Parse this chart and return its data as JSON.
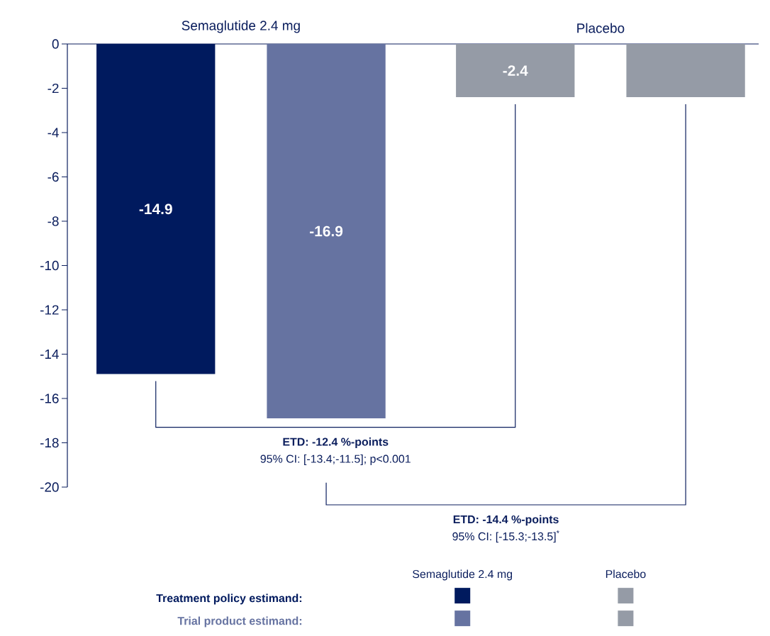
{
  "chart_data": {
    "type": "bar",
    "categories": [
      "Semaglutide 2.4 mg",
      "Placebo"
    ],
    "series": [
      {
        "name": "Treatment policy estimand:",
        "colors": [
          "#001a5e",
          "#959ba6"
        ],
        "values": [
          -14.9,
          -2.4
        ],
        "value_labels": [
          "-14.9",
          "-2.4"
        ]
      },
      {
        "name": "Trial product estimand:",
        "colors": [
          "#6673a1",
          "#959ba6"
        ],
        "values": [
          -16.9,
          -2.4
        ],
        "value_labels": [
          "-16.9",
          null
        ]
      }
    ],
    "ylim": [
      -20,
      0
    ],
    "yticks": [
      -20,
      -18,
      -16,
      -14,
      -12,
      -10,
      -8,
      -6,
      -4,
      -2,
      0
    ],
    "legend": "bottom",
    "annotations": [
      "**ETD: -12.4 %-points**",
      "95% CI: [-13.4;-11.5]; p<0.001",
      "**ETD: -14.4 %-points**",
      "95% CI: [-15.3;-13.5]$^{*}$"
    ]
  }
}
